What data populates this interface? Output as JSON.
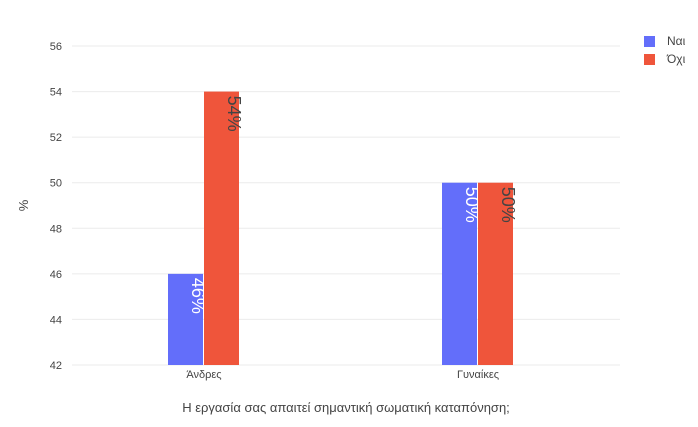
{
  "chart_data": {
    "type": "bar",
    "categories": [
      "Άνδρες",
      "Γυναίκες"
    ],
    "series": [
      {
        "name": "Ναι",
        "values": [
          46,
          50
        ],
        "labels": [
          "46%",
          "50%"
        ],
        "color": "#636efa"
      },
      {
        "name": "Όχι",
        "values": [
          54,
          50
        ],
        "labels": [
          "54%",
          "50%"
        ],
        "color": "#ef553b"
      }
    ],
    "xlabel": "Η εργασία σας απαιτεί σημαντική σωματική καταπόνηση;",
    "ylabel": "%",
    "ylim": [
      42,
      56
    ],
    "yticks": [
      42,
      44,
      46,
      48,
      50,
      52,
      54,
      56
    ],
    "grid": true,
    "legend_position": "top-right"
  }
}
